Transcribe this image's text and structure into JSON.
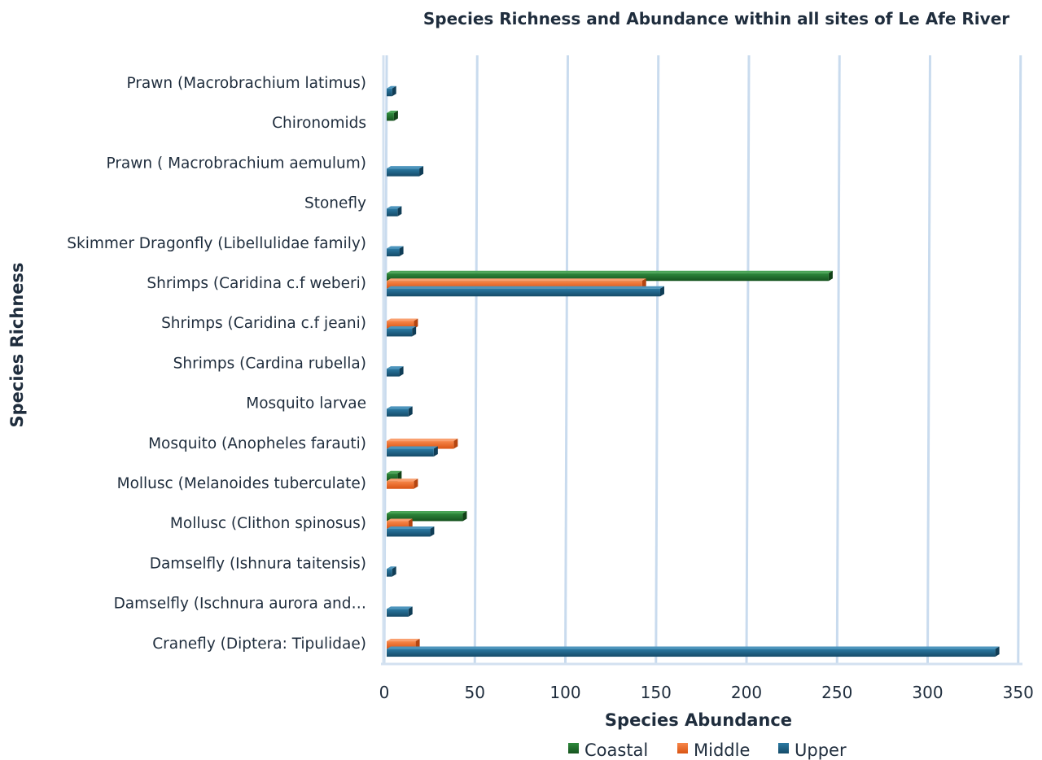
{
  "chart_data": {
    "type": "bar",
    "orientation": "horizontal",
    "title": "Species Richness and Abundance within all sites of Le Afe River",
    "xlabel": "Species Abundance",
    "ylabel": "Species Richness",
    "xlim": [
      0,
      350
    ],
    "xticks": [
      0,
      50,
      100,
      150,
      200,
      250,
      300,
      350
    ],
    "grid": true,
    "legend_position": "bottom",
    "categories": [
      "Prawn (Macrobrachium latimus)",
      "Chironomids",
      "Prawn ( Macrobrachium aemulum)",
      "Stonefly",
      "Skimmer Dragonfly (Libellulidae family)",
      "Shrimps (Caridina c.f weberi)",
      "Shrimps (Caridina c.f jeani)",
      "Shrimps (Cardina rubella)",
      "Mosquito larvae",
      "Mosquito (Anopheles farauti)",
      "Mollusc (Melanoides tuberculate)",
      "Mollusc (Clithon spinosus)",
      "Damselfly (Ishnura taitensis)",
      "Damselfly (Ischnura aurora and…",
      "Cranefly (Diptera: Tipulidae)"
    ],
    "series": [
      {
        "name": "Coastal",
        "color": "#1e6b2a",
        "values": [
          0,
          4,
          0,
          0,
          0,
          244,
          0,
          0,
          0,
          0,
          6,
          42,
          0,
          0,
          0
        ]
      },
      {
        "name": "Middle",
        "color": "#ef6a25",
        "values": [
          0,
          0,
          0,
          0,
          0,
          141,
          15,
          0,
          0,
          37,
          15,
          12,
          0,
          0,
          16
        ]
      },
      {
        "name": "Upper",
        "color": "#1d5e82",
        "values": [
          3,
          0,
          18,
          6,
          7,
          151,
          14,
          7,
          12,
          26,
          0,
          24,
          3,
          12,
          336
        ]
      }
    ]
  }
}
